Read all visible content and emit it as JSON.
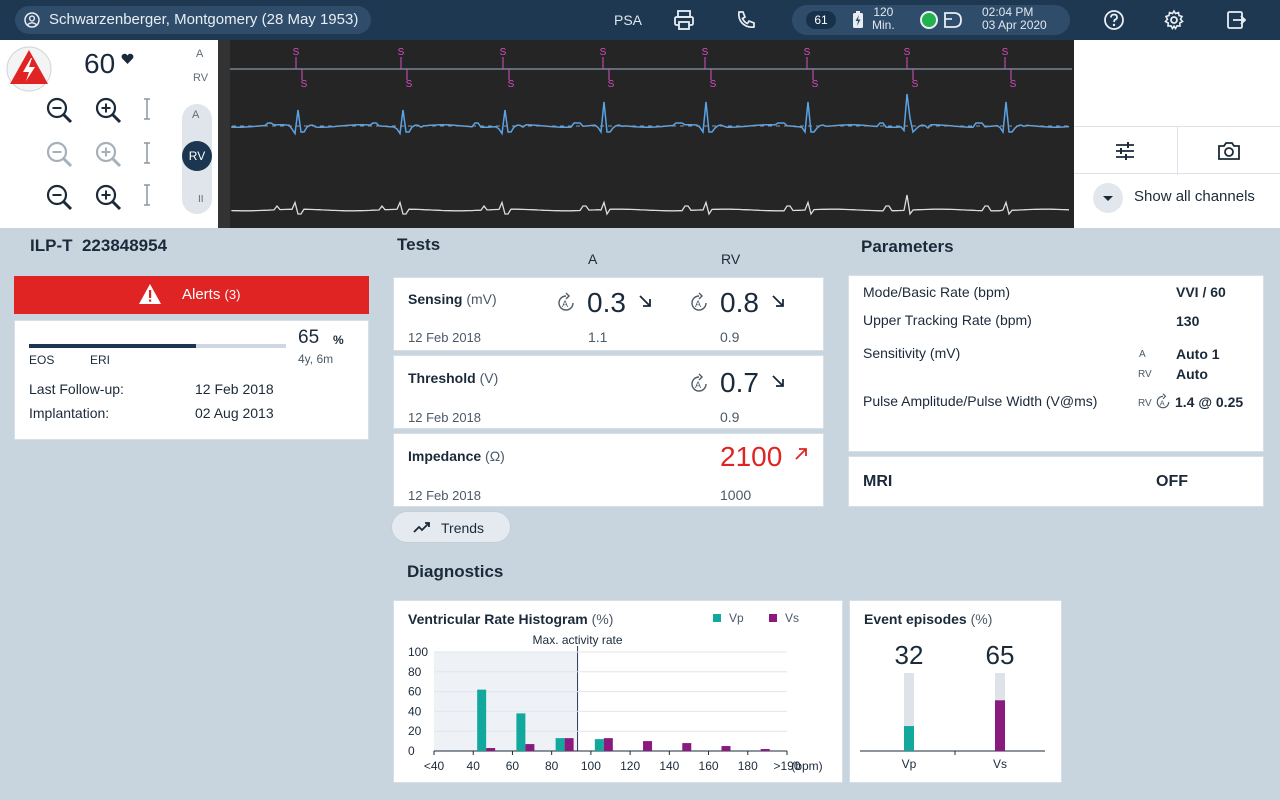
{
  "header": {
    "patient": "Schwarzenberger, Montgomery (28 May 1953)",
    "psa": "PSA",
    "heart_rate_badge": "61",
    "battery_minutes": "120",
    "battery_unit": "Min.",
    "time": "02:04 PM",
    "date": "03 Apr 2020",
    "icons": [
      "user-circle-icon",
      "printer-icon",
      "phone-icon",
      "battery-charging-icon",
      "status-dot-icon",
      "device-icon",
      "help-icon",
      "gear-icon",
      "exit-icon"
    ]
  },
  "ecg": {
    "heart_rate": "60",
    "lead_labels": [
      "A",
      "RV"
    ],
    "lead_selector": [
      "A",
      "RV"
    ],
    "channel_label": "II",
    "marker_label": "S",
    "show_all_channels": "Show all channels",
    "trace_color": "#5ba3e6",
    "marker_color": "#d64fc2"
  },
  "device": {
    "model": "ILP-T",
    "serial": "223848954",
    "alerts_label": "Alerts",
    "alerts_count": "(3)",
    "battery_percent": 65,
    "battery_percent_text": "65",
    "percent_sign": "%",
    "battery_remaining": "4y, 6m",
    "eos_label": "EOS",
    "eri_label": "ERI",
    "last_followup_label": "Last Follow-up:",
    "last_followup_value": "12 Feb 2018",
    "implantation_label": "Implantation:",
    "implantation_value": "02 Aug 2013"
  },
  "tests": {
    "title": "Tests",
    "col_a": "A",
    "col_rv": "RV",
    "sensing": {
      "name": "Sensing",
      "unit": "(mV)",
      "date": "12 Feb 2018",
      "a_value": "0.3",
      "a_prev": "1.1",
      "rv_value": "0.8",
      "rv_prev": "0.9"
    },
    "threshold": {
      "name": "Threshold",
      "unit": "(V)",
      "date": "12 Feb 2018",
      "rv_value": "0.7",
      "rv_prev": "0.9"
    },
    "impedance": {
      "name": "Impedance",
      "unit": "(Ω)",
      "date": "12 Feb 2018",
      "rv_value": "2100",
      "rv_prev": "1000",
      "alert_color": "#e02424"
    },
    "trends_label": "Trends"
  },
  "parameters": {
    "title": "Parameters",
    "mode_label": "Mode/Basic Rate (bpm)",
    "mode_value": "VVI / 60",
    "utr_label": "Upper Tracking Rate (bpm)",
    "utr_value": "130",
    "sensitivity_label": "Sensitivity (mV)",
    "sens_a_tag": "A",
    "sens_a_value": "Auto 1",
    "sens_rv_tag": "RV",
    "sens_rv_value": "Auto",
    "pulse_label": "Pulse Amplitude/Pulse Width (V@ms)",
    "pulse_tag": "RV",
    "pulse_value": "1.4 @ 0.25",
    "mri_label": "MRI",
    "mri_value": "OFF"
  },
  "diagnostics": {
    "title": "Diagnostics",
    "histogram_title": "Ventricular Rate Histogram",
    "histogram_unit": "(%)",
    "event_title": "Event episodes",
    "event_unit": "(%)"
  },
  "chart_data": [
    {
      "type": "bar",
      "title": "Ventricular Rate Histogram (%)",
      "annotation": "Max. activity rate",
      "annotation_x_bin": 3,
      "xlabel": "(bpm)",
      "categories": [
        "<40",
        "40",
        "60",
        "80",
        "100",
        "120",
        "140",
        "160",
        "180",
        ">190"
      ],
      "ylim": [
        0,
        100
      ],
      "yticks": [
        "100",
        "80",
        "60",
        "40",
        "20",
        "0"
      ],
      "legend_position": "top-right",
      "series": [
        {
          "name": "Vp",
          "color": "#13a89e",
          "values": [
            0,
            62,
            38,
            13,
            12,
            0,
            0,
            0,
            0,
            0
          ]
        },
        {
          "name": "Vs",
          "color": "#8a1a7e",
          "values": [
            0,
            3,
            7,
            13,
            13,
            10,
            8,
            5,
            2,
            0
          ]
        }
      ]
    },
    {
      "type": "bar",
      "title": "Event episodes (%)",
      "categories": [
        "Vp",
        "Vs"
      ],
      "values": [
        32,
        65
      ],
      "value_labels": [
        "32",
        "65"
      ],
      "ylim": [
        0,
        100
      ],
      "colors": [
        "#13a89e",
        "#8a1a7e"
      ]
    }
  ]
}
